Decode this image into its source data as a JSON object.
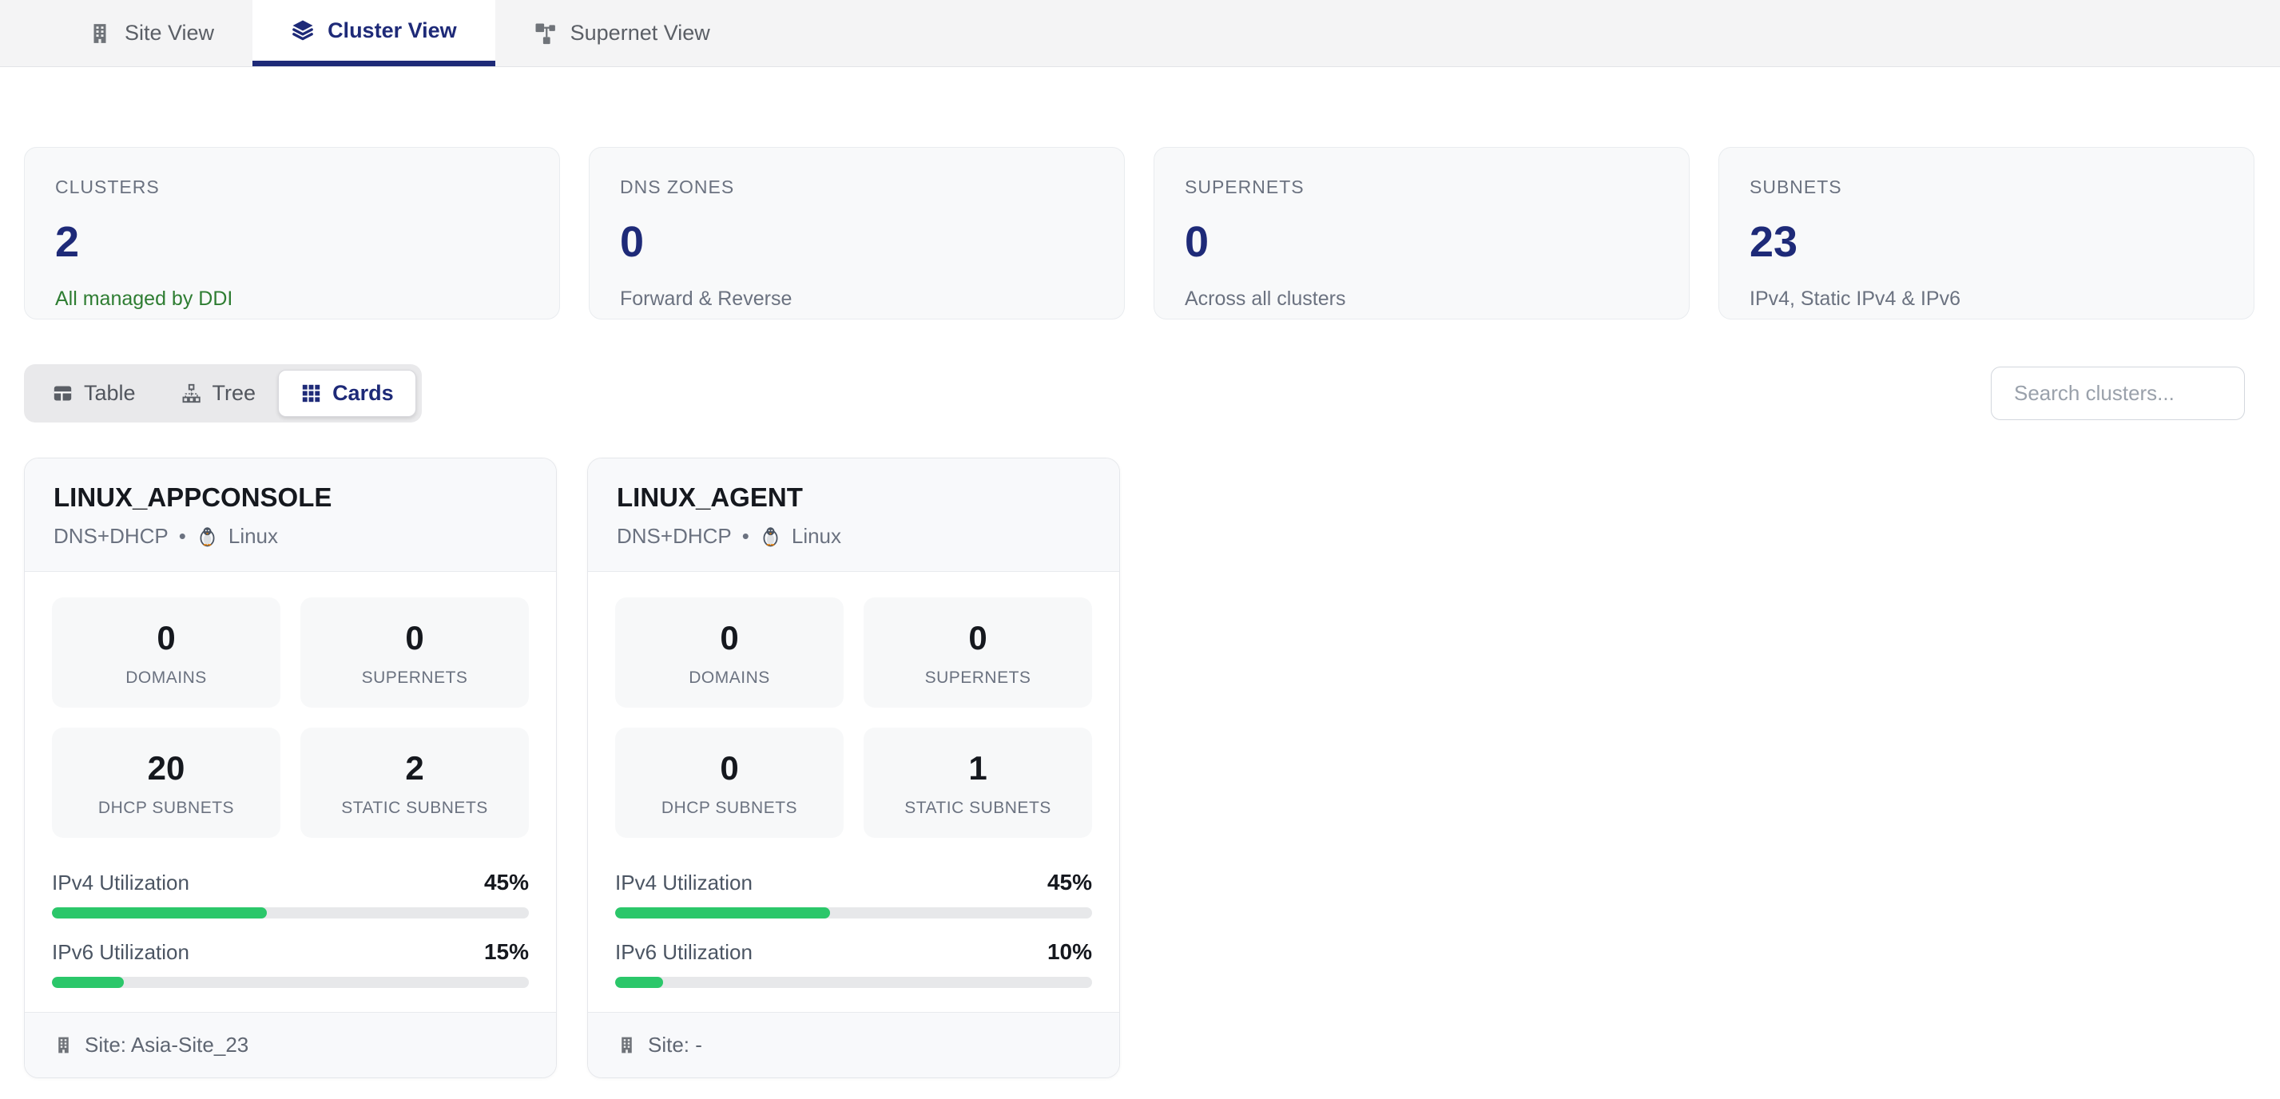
{
  "colors": {
    "accent_navy": "#1e2a78",
    "green_fill": "#2bc76a",
    "green_text": "#2e7d32"
  },
  "tab_bar": {
    "tabs": [
      {
        "label": "Site View",
        "icon": "building-icon",
        "active": false
      },
      {
        "label": "Cluster View",
        "icon": "layers-icon",
        "active": true
      },
      {
        "label": "Supernet View",
        "icon": "network-icon",
        "active": false
      }
    ]
  },
  "summary_cards": [
    {
      "label": "CLUSTERS",
      "value": "2",
      "subtext": "All managed by DDI"
    },
    {
      "label": "DNS ZONES",
      "value": "0",
      "subtext": "Forward & Reverse"
    },
    {
      "label": "SUPERNETS",
      "value": "0",
      "subtext": "Across all clusters"
    },
    {
      "label": "SUBNETS",
      "value": "23",
      "subtext": "IPv4, Static IPv4 & IPv6"
    }
  ],
  "view_toggle": {
    "options": [
      {
        "label": "Table",
        "icon": "table-icon",
        "active": false
      },
      {
        "label": "Tree",
        "icon": "tree-icon",
        "active": false
      },
      {
        "label": "Cards",
        "icon": "grid-icon",
        "active": true
      }
    ]
  },
  "search": {
    "placeholder": "Search clusters..."
  },
  "meta_separator": "•",
  "clusters": [
    {
      "name": "LINUX_APPCONSOLE",
      "services": "DNS+DHCP",
      "os": "Linux",
      "metrics": [
        {
          "value": "0",
          "label": "DOMAINS"
        },
        {
          "value": "0",
          "label": "SUPERNETS"
        },
        {
          "value": "20",
          "label": "DHCP SUBNETS"
        },
        {
          "value": "2",
          "label": "STATIC SUBNETS"
        }
      ],
      "utilization": [
        {
          "label": "IPv4 Utilization",
          "display": "45%",
          "percent": 45
        },
        {
          "label": "IPv6 Utilization",
          "display": "15%",
          "percent": 15
        }
      ],
      "site": "Site: Asia-Site_23"
    },
    {
      "name": "LINUX_AGENT",
      "services": "DNS+DHCP",
      "os": "Linux",
      "metrics": [
        {
          "value": "0",
          "label": "DOMAINS"
        },
        {
          "value": "0",
          "label": "SUPERNETS"
        },
        {
          "value": "0",
          "label": "DHCP SUBNETS"
        },
        {
          "value": "1",
          "label": "STATIC SUBNETS"
        }
      ],
      "utilization": [
        {
          "label": "IPv4 Utilization",
          "display": "45%",
          "percent": 45
        },
        {
          "label": "IPv6 Utilization",
          "display": "10%",
          "percent": 10
        }
      ],
      "site": "Site: -"
    }
  ]
}
